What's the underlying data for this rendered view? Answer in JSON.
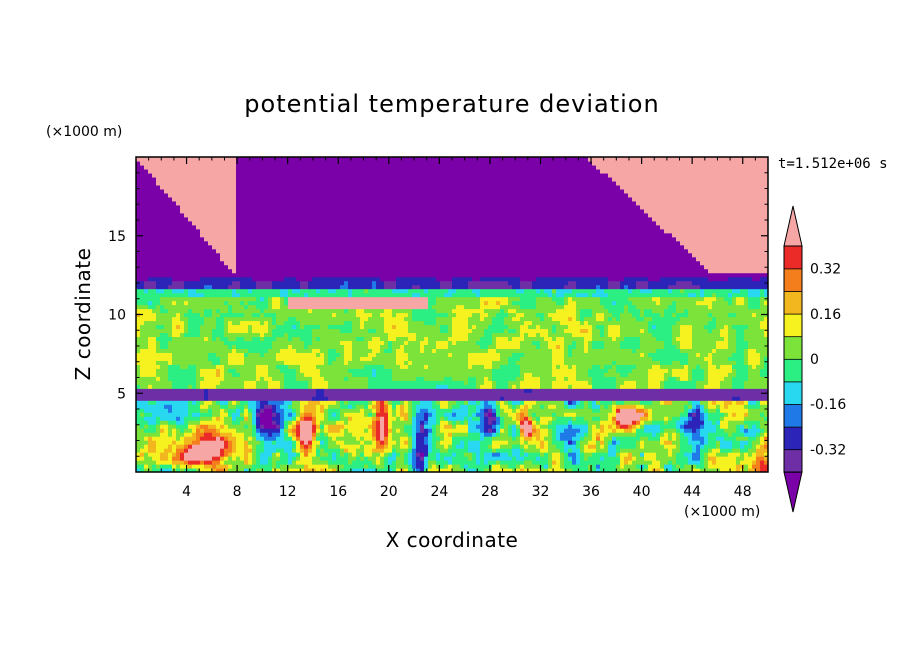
{
  "chart_data": {
    "type": "heatmap",
    "title": "potential temperature deviation",
    "xlabel": "X coordinate",
    "ylabel": "Z coordinate",
    "x_unit": "(×1000 m)",
    "y_unit": "(×1000 m)",
    "time_label": "t=1.512e+06 s",
    "xlim": [
      0,
      50
    ],
    "ylim": [
      0,
      20
    ],
    "x_ticks": [
      4,
      8,
      12,
      16,
      20,
      24,
      28,
      32,
      36,
      40,
      44,
      48
    ],
    "x_tick_labels": [
      "4",
      "8",
      "12",
      "16",
      "20",
      "24",
      "28",
      "32",
      "36",
      "40",
      "44",
      "48"
    ],
    "y_ticks": [
      5,
      10,
      15
    ],
    "y_tick_labels": [
      "5",
      "10",
      "15"
    ],
    "colorbar": {
      "levels": [
        -0.4,
        -0.32,
        -0.24,
        -0.16,
        -0.08,
        0,
        0.08,
        0.16,
        0.24,
        0.32,
        0.4
      ],
      "colors": [
        "#6e2fa6",
        "#2c24b8",
        "#1f7ae8",
        "#28d8f0",
        "#2bef83",
        "#7be33a",
        "#f5f220",
        "#f2b71e",
        "#f57e1c",
        "#eb2b27"
      ],
      "under_color": "#7a00a8",
      "over_color": "#f7a6a6",
      "labels": [
        "-0.32",
        "-0.16",
        "0",
        "0.16",
        "0.32"
      ],
      "label_values": [
        -0.32,
        -0.16,
        0,
        0.16,
        0.32
      ]
    }
  }
}
